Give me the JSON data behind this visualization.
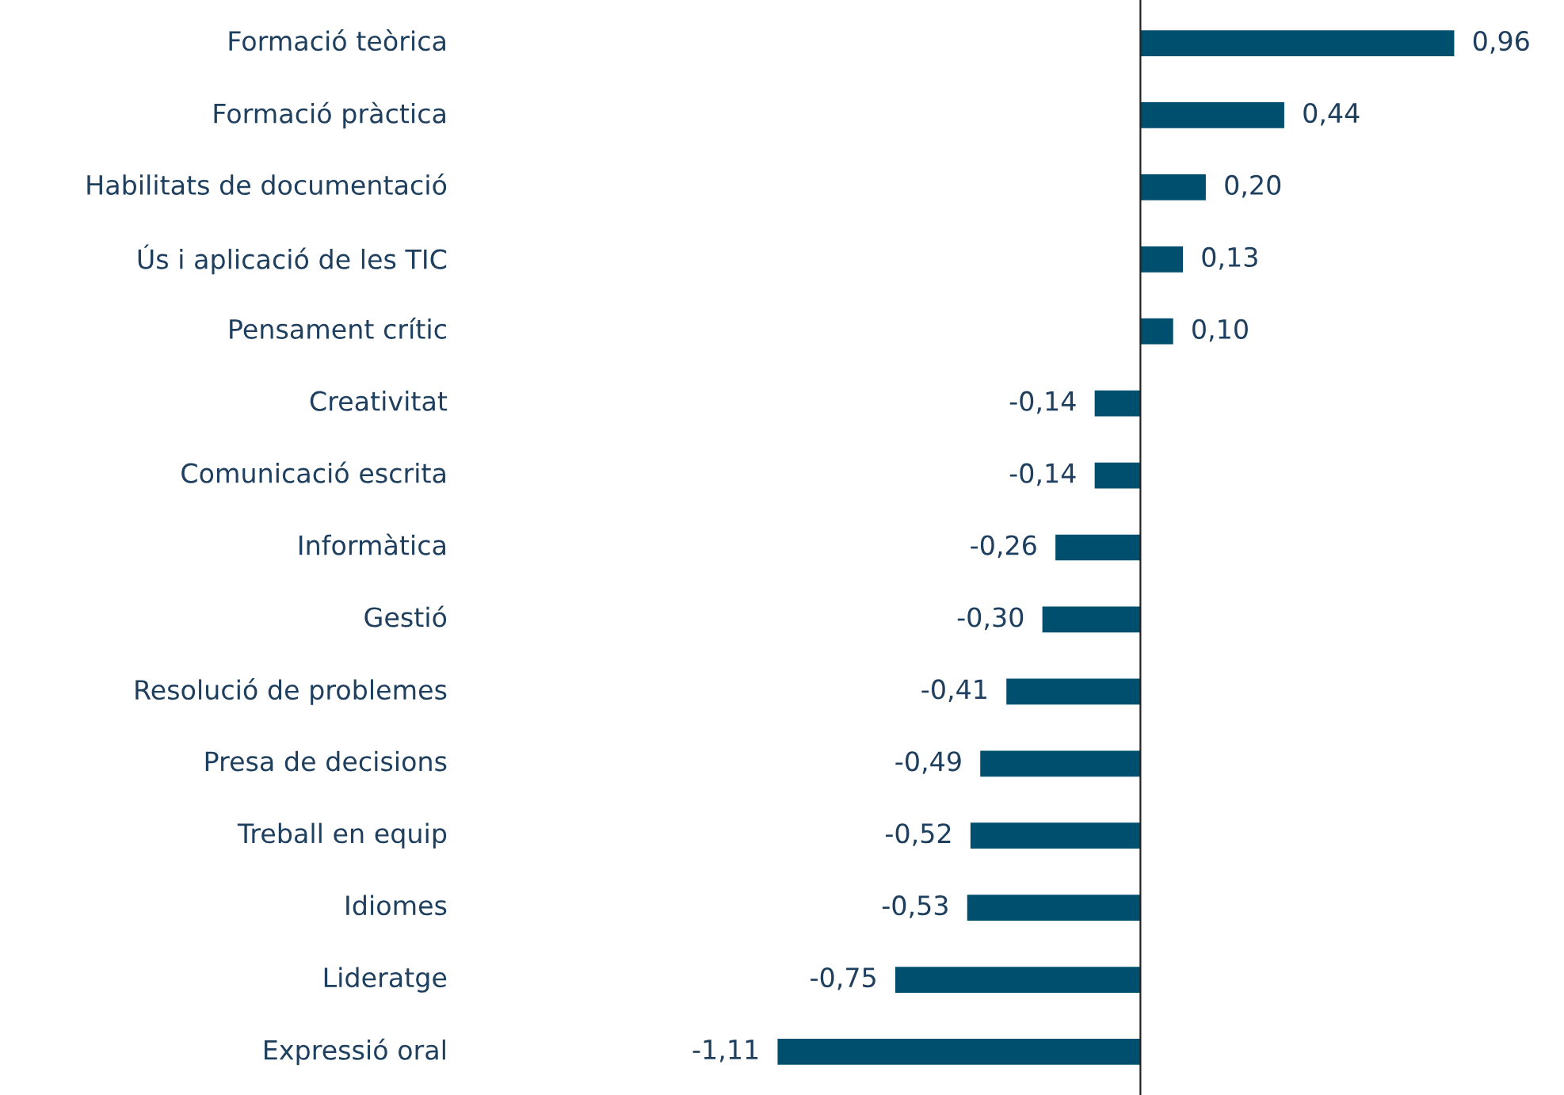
{
  "chart_data": {
    "type": "bar",
    "orientation": "horizontal",
    "categories": [
      "Formació teòrica",
      "Formació pràctica",
      "Habilitats de documentació",
      "Ús i aplicació de les TIC",
      "Pensament crític",
      "Creativitat",
      "Comunicació escrita",
      "Informàtica",
      "Gestió",
      "Resolució de problemes",
      "Presa de decisions",
      "Treball en equip",
      "Idiomes",
      "Lideratge",
      "Expressió oral"
    ],
    "values": [
      0.96,
      0.44,
      0.2,
      0.13,
      0.1,
      -0.14,
      -0.14,
      -0.26,
      -0.3,
      -0.41,
      -0.49,
      -0.52,
      -0.53,
      -0.75,
      -1.11
    ],
    "value_labels": [
      "0,96",
      "0,44",
      "0,20",
      "0,13",
      "0,10",
      "-0,14",
      "-0,14",
      "-0,26",
      "-0,30",
      "-0,41",
      "-0,49",
      "-0,52",
      "-0,53",
      "-0,75",
      "-1,11"
    ],
    "color": "#004f6e"
  }
}
